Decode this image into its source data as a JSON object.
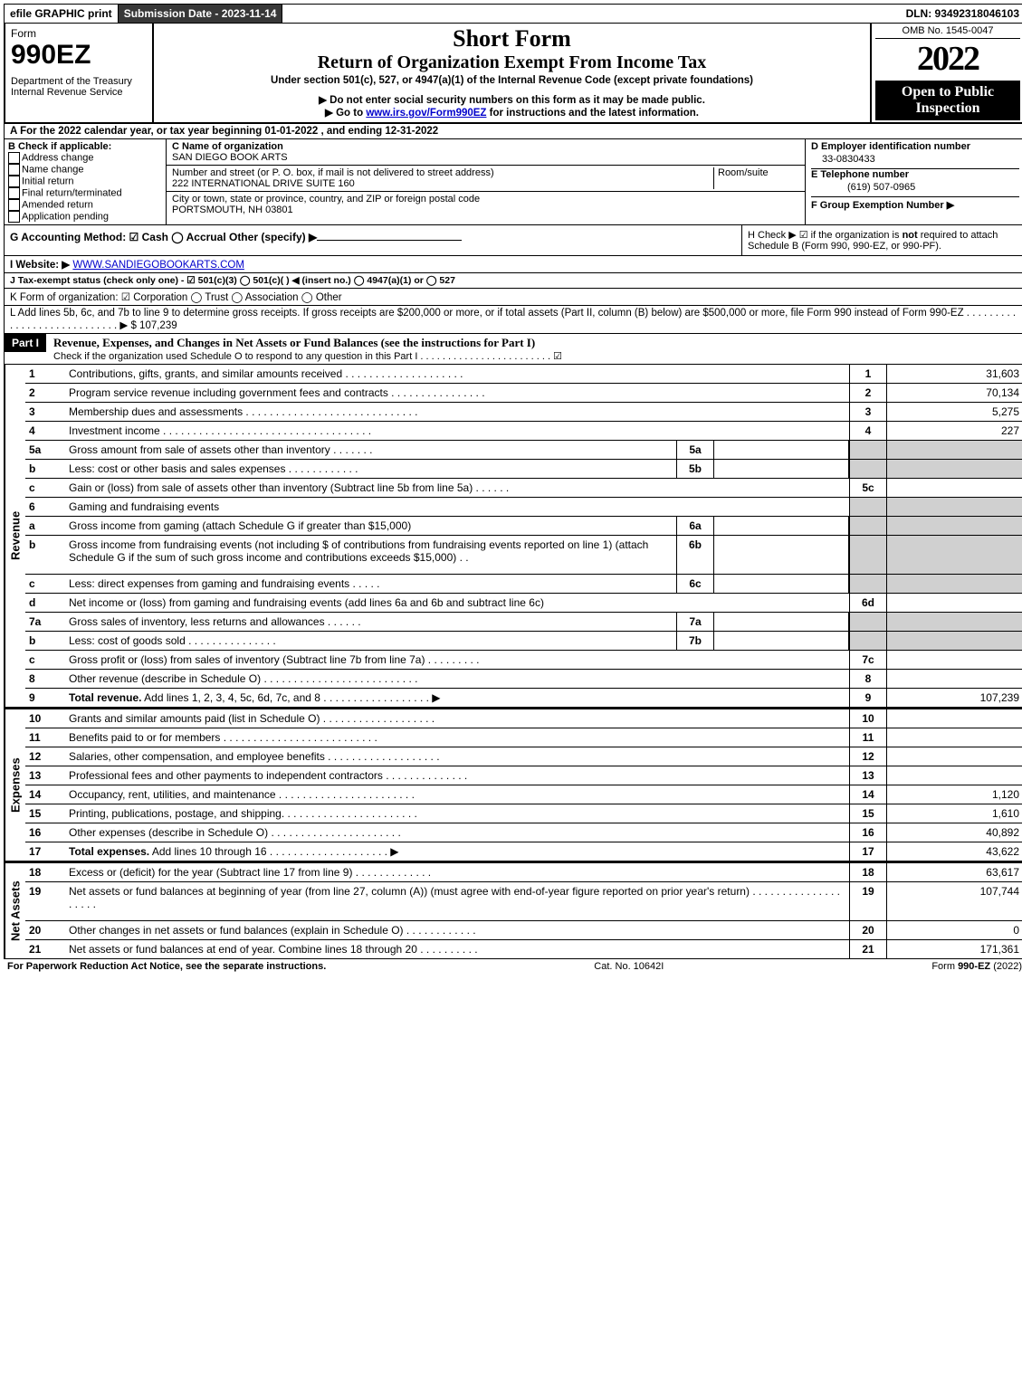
{
  "top": {
    "efile": "efile GRAPHIC print",
    "submission": "Submission Date - 2023-11-14",
    "dln": "DLN: 93492318046103"
  },
  "header": {
    "form_word": "Form",
    "form_no": "990EZ",
    "dept": "Department of the Treasury",
    "irs": "Internal Revenue Service",
    "title": "Short Form",
    "subtitle": "Return of Organization Exempt From Income Tax",
    "under": "Under section 501(c), 527, or 4947(a)(1) of the Internal Revenue Code (except private foundations)",
    "note1": "▶ Do not enter social security numbers on this form as it may be made public.",
    "note2_pre": "▶ Go to ",
    "note2_link": "www.irs.gov/Form990EZ",
    "note2_post": " for instructions and the latest information.",
    "omb": "OMB No. 1545-0047",
    "year": "2022",
    "open": "Open to Public Inspection"
  },
  "A": "A  For the 2022 calendar year, or tax year beginning 01-01-2022  , and ending 12-31-2022",
  "B": {
    "label": "B  Check if applicable:",
    "items": [
      "Address change",
      "Name change",
      "Initial return",
      "Final return/terminated",
      "Amended return",
      "Application pending"
    ]
  },
  "C": {
    "name_label": "C Name of organization",
    "name": "SAN DIEGO BOOK ARTS",
    "street_label": "Number and street (or P. O. box, if mail is not delivered to street address)",
    "room_label": "Room/suite",
    "street": "222 INTERNATIONAL DRIVE SUITE 160",
    "city_label": "City or town, state or province, country, and ZIP or foreign postal code",
    "city": "PORTSMOUTH, NH  03801"
  },
  "D": {
    "ein_label": "D Employer identification number",
    "ein": "33-0830433",
    "phone_label": "E Telephone number",
    "phone": "(619) 507-0965",
    "group_label": "F Group Exemption Number  ▶"
  },
  "G": "G Accounting Method:   ☑ Cash   ◯ Accrual   Other (specify) ▶",
  "H": {
    "label": "H   Check ▶ ☑ if the organization is ",
    "bold": "not",
    "rest": " required to attach Schedule B (Form 990, 990-EZ, or 990-PF)."
  },
  "I": {
    "label": "I Website: ▶",
    "value": "WWW.SANDIEGOBOOKARTS.COM"
  },
  "J": "J Tax-exempt status (check only one) - ☑ 501(c)(3) ◯ 501(c)(  ) ◀ (insert no.) ◯ 4947(a)(1) or ◯ 527",
  "K": "K Form of organization:  ☑ Corporation   ◯ Trust   ◯ Association   ◯ Other",
  "L": {
    "text": "L Add lines 5b, 6c, and 7b to line 9 to determine gross receipts. If gross receipts are $200,000 or more, or if total assets (Part II, column (B) below) are $500,000 or more, file Form 990 instead of Form 990-EZ .   .   .   .   .   .   .   .   .   .   .   .   .   .   .   .   .   .   .   .   .   .   .   .   .   .   .   . ▶ $ ",
    "amount": "107,239"
  },
  "part1": {
    "label": "Part I",
    "title": "Revenue, Expenses, and Changes in Net Assets or Fund Balances (see the instructions for Part I)",
    "check": "Check if the organization used Schedule O to respond to any question in this Part I .  .  .  .  .  .  .  .  .  .  .  .  .  .  .  .  .  .  .  .  .  .  .  .  ☑"
  },
  "sections": {
    "revenue": "Revenue",
    "expenses": "Expenses",
    "netassets": "Net Assets"
  },
  "lines": [
    {
      "n": "1",
      "desc": "Contributions, gifts, grants, and similar amounts received .   .   .   .   .   .   .   .   .   .   .   .   .   .   .   .   .   .   .   .",
      "ln": "1",
      "amt": "31,603"
    },
    {
      "n": "2",
      "desc": "Program service revenue including government fees and contracts .   .   .   .   .   .   .   .   .   .   .   .   .   .   .   .",
      "ln": "2",
      "amt": "70,134"
    },
    {
      "n": "3",
      "desc": "Membership dues and assessments .   .   .   .   .   .   .   .   .   .   .   .   .   .   .   .   .   .   .   .   .   .   .   .   .   .   .   .   .",
      "ln": "3",
      "amt": "5,275"
    },
    {
      "n": "4",
      "desc": "Investment income .   .   .   .   .   .   .   .   .   .   .   .   .   .   .   .   .   .   .   .   .   .   .   .   .   .   .   .   .   .   .   .   .   .   .",
      "ln": "4",
      "amt": "227"
    },
    {
      "n": "5a",
      "desc": "Gross amount from sale of assets other than inventory .   .   .   .   .   .   .",
      "sub": "5a",
      "subv": "",
      "grey": true
    },
    {
      "n": "b",
      "desc": "Less: cost or other basis and sales expenses .   .   .   .   .   .   .   .   .   .   .   .",
      "sub": "5b",
      "subv": "",
      "grey": true
    },
    {
      "n": "c",
      "desc": "Gain or (loss) from sale of assets other than inventory (Subtract line 5b from line 5a) .   .   .   .   .   .",
      "ln": "5c",
      "amt": ""
    },
    {
      "n": "6",
      "desc": "Gaming and fundraising events",
      "nolinecol": true,
      "grey": true
    },
    {
      "n": "a",
      "desc": "Gross income from gaming (attach Schedule G if greater than $15,000)",
      "sub": "6a",
      "subv": "",
      "grey": true
    },
    {
      "n": "b",
      "desc": "Gross income from fundraising events (not including $                          of contributions from fundraising events reported on line 1) (attach Schedule G if the sum of such gross income and contributions exceeds $15,000)   .   .",
      "sub": "6b",
      "subv": "",
      "grey": true,
      "tall": true
    },
    {
      "n": "c",
      "desc": "Less: direct expenses from gaming and fundraising events   .   .   .   .   .",
      "sub": "6c",
      "subv": "",
      "grey": true
    },
    {
      "n": "d",
      "desc": "Net income or (loss) from gaming and fundraising events (add lines 6a and 6b and subtract line 6c)",
      "ln": "6d",
      "amt": ""
    },
    {
      "n": "7a",
      "desc": "Gross sales of inventory, less returns and allowances .   .   .   .   .   .",
      "sub": "7a",
      "subv": "",
      "grey": true
    },
    {
      "n": "b",
      "desc": "Less: cost of goods sold           .   .   .   .   .   .   .   .   .   .   .   .   .   .   .",
      "sub": "7b",
      "subv": "",
      "grey": true
    },
    {
      "n": "c",
      "desc": "Gross profit or (loss) from sales of inventory (Subtract line 7b from line 7a) .   .   .   .   .   .   .   .   .",
      "ln": "7c",
      "amt": ""
    },
    {
      "n": "8",
      "desc": "Other revenue (describe in Schedule O) .   .   .   .   .   .   .   .   .   .   .   .   .   .   .   .   .   .   .   .   .   .   .   .   .   .",
      "ln": "8",
      "amt": ""
    },
    {
      "n": "9",
      "desc": "Total revenue. Add lines 1, 2, 3, 4, 5c, 6d, 7c, and 8  .   .   .   .   .   .   .   .   .   .   .   .   .   .   .   .   .   . ▶",
      "ln": "9",
      "amt": "107,239",
      "bold": true
    }
  ],
  "exp_lines": [
    {
      "n": "10",
      "desc": "Grants and similar amounts paid (list in Schedule O) .   .   .   .   .   .   .   .   .   .   .   .   .   .   .   .   .   .   .",
      "ln": "10",
      "amt": ""
    },
    {
      "n": "11",
      "desc": "Benefits paid to or for members       .   .   .   .   .   .   .   .   .   .   .   .   .   .   .   .   .   .   .   .   .   .   .   .   .   .",
      "ln": "11",
      "amt": ""
    },
    {
      "n": "12",
      "desc": "Salaries, other compensation, and employee benefits .   .   .   .   .   .   .   .   .   .   .   .   .   .   .   .   .   .   .",
      "ln": "12",
      "amt": ""
    },
    {
      "n": "13",
      "desc": "Professional fees and other payments to independent contractors .   .   .   .   .   .   .   .   .   .   .   .   .   .",
      "ln": "13",
      "amt": ""
    },
    {
      "n": "14",
      "desc": "Occupancy, rent, utilities, and maintenance .   .   .   .   .   .   .   .   .   .   .   .   .   .   .   .   .   .   .   .   .   .   .",
      "ln": "14",
      "amt": "1,120"
    },
    {
      "n": "15",
      "desc": "Printing, publications, postage, and shipping.   .   .   .   .   .   .   .   .   .   .   .   .   .   .   .   .   .   .   .   .   .   .",
      "ln": "15",
      "amt": "1,610"
    },
    {
      "n": "16",
      "desc": "Other expenses (describe in Schedule O)       .   .   .   .   .   .   .   .   .   .   .   .   .   .   .   .   .   .   .   .   .   .",
      "ln": "16",
      "amt": "40,892"
    },
    {
      "n": "17",
      "desc": "Total expenses. Add lines 10 through 16      .   .   .   .   .   .   .   .   .   .   .   .   .   .   .   .   .   .   .   . ▶",
      "ln": "17",
      "amt": "43,622",
      "bold": true
    }
  ],
  "na_lines": [
    {
      "n": "18",
      "desc": "Excess or (deficit) for the year (Subtract line 17 from line 9)        .   .   .   .   .   .   .   .   .   .   .   .   .",
      "ln": "18",
      "amt": "63,617"
    },
    {
      "n": "19",
      "desc": "Net assets or fund balances at beginning of year (from line 27, column (A)) (must agree with end-of-year figure reported on prior year's return) .   .   .   .   .   .   .   .   .   .   .   .   .   .   .   .   .   .   .   .",
      "ln": "19",
      "amt": "107,744",
      "tall": true
    },
    {
      "n": "20",
      "desc": "Other changes in net assets or fund balances (explain in Schedule O) .   .   .   .   .   .   .   .   .   .   .   .",
      "ln": "20",
      "amt": "0"
    },
    {
      "n": "21",
      "desc": "Net assets or fund balances at end of year. Combine lines 18 through 20 .   .   .   .   .   .   .   .   .   .",
      "ln": "21",
      "amt": "171,361"
    }
  ],
  "footer": {
    "left": "For Paperwork Reduction Act Notice, see the separate instructions.",
    "center": "Cat. No. 10642I",
    "right_pre": "Form ",
    "right_bold": "990-EZ",
    "right_post": " (2022)"
  }
}
